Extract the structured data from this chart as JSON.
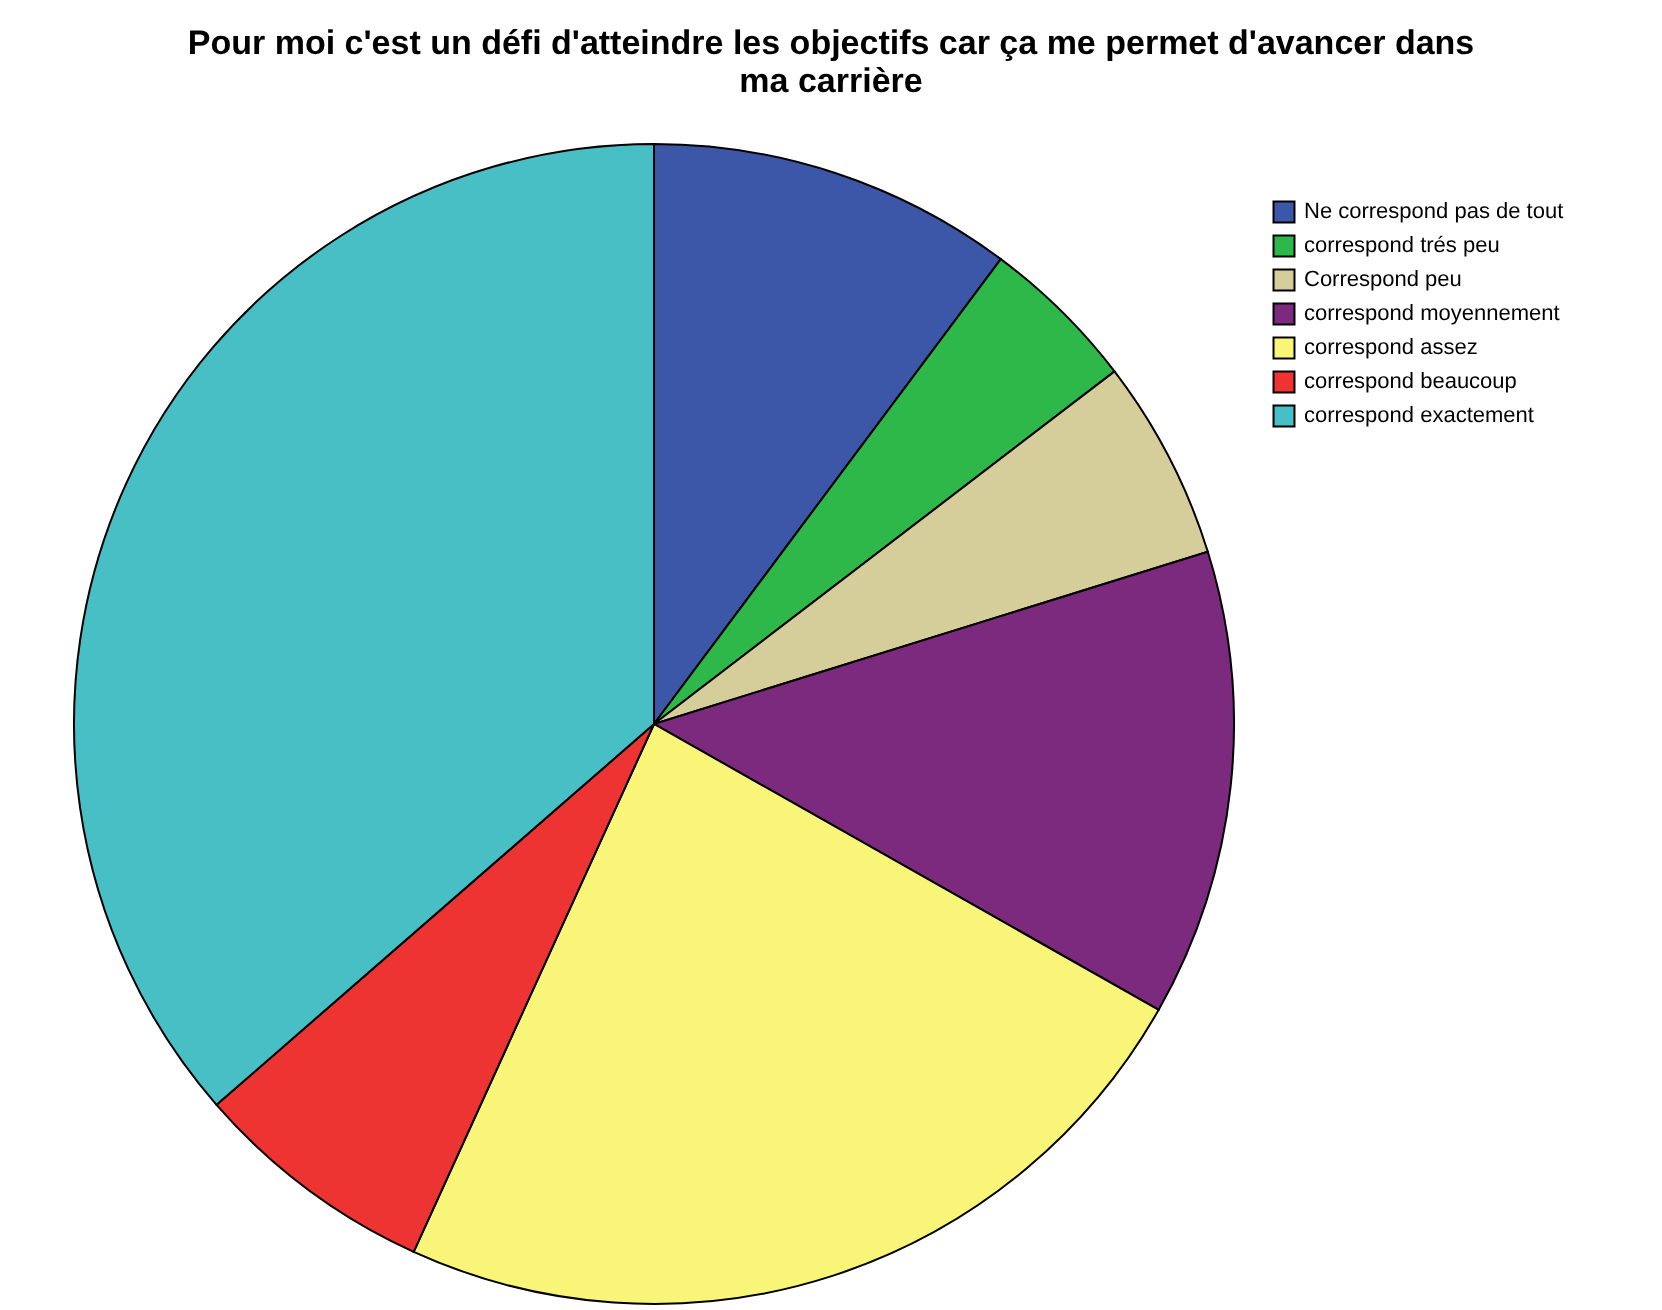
{
  "chart_data": {
    "type": "pie",
    "title": "Pour moi c'est un défi d'atteindre les objectifs car ça me permet d'avancer dans ma carrière",
    "categories": [
      "Ne correspond pas de tout",
      "correspond trés peu",
      "Correspond peu",
      "correspond moyennement",
      "correspond assez",
      "correspond beaucoup",
      "correspond exactement"
    ],
    "values": [
      10.2,
      4.4,
      5.6,
      13.0,
      23.6,
      6.8,
      36.4
    ],
    "colors": [
      "#3c56a8",
      "#2eb84a",
      "#d5cd9a",
      "#7b2a7e",
      "#f8f578",
      "#ee3333",
      "#47bfc4"
    ],
    "legend": "top right"
  }
}
